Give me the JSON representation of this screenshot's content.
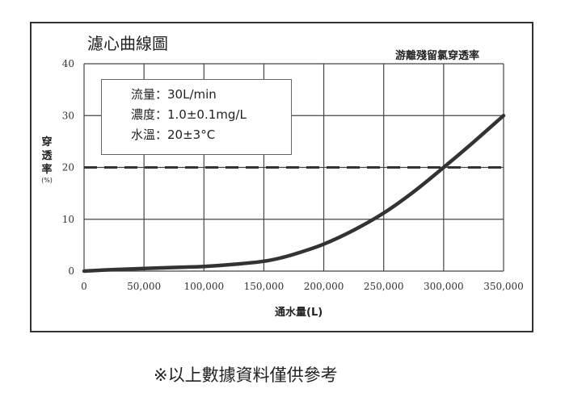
{
  "chart_data": {
    "type": "line",
    "title": "濾心曲線圖",
    "xlabel": "通水量(L)",
    "ylabel": "穿透率",
    "ylabel_unit": "(%)",
    "xlim": [
      0,
      350000
    ],
    "ylim": [
      0,
      40
    ],
    "x_ticks": [
      0,
      50000,
      100000,
      150000,
      200000,
      250000,
      300000,
      350000
    ],
    "x_tick_labels": [
      "0",
      "50,000",
      "100,000",
      "150,000",
      "200,000",
      "250,000",
      "300,000",
      "350,000"
    ],
    "y_ticks": [
      0,
      10,
      20,
      30,
      40
    ],
    "y_tick_labels": [
      "0",
      "10",
      "20",
      "30",
      "40"
    ],
    "grid": true,
    "series": [
      {
        "name": "游離殘留氯穿透率",
        "color": "#333333",
        "x": [
          0,
          25000,
          50000,
          75000,
          100000,
          125000,
          150000,
          165000,
          180000,
          200000,
          225000,
          250000,
          275000,
          300000,
          325000,
          350000
        ],
        "y": [
          0,
          0.3,
          0.5,
          0.7,
          0.9,
          1.3,
          1.9,
          2.6,
          3.6,
          5.2,
          7.9,
          11.2,
          15.3,
          20.0,
          24.9,
          30.0
        ]
      }
    ],
    "reference_line": {
      "y": 20,
      "style": "dashed",
      "color": "#333333"
    },
    "info_box": [
      "流量：30L/min",
      "濃度：1.0±0.1mg/L",
      "水溫：20±3°C"
    ]
  },
  "footnote": "※以上數據資料僅供參考"
}
